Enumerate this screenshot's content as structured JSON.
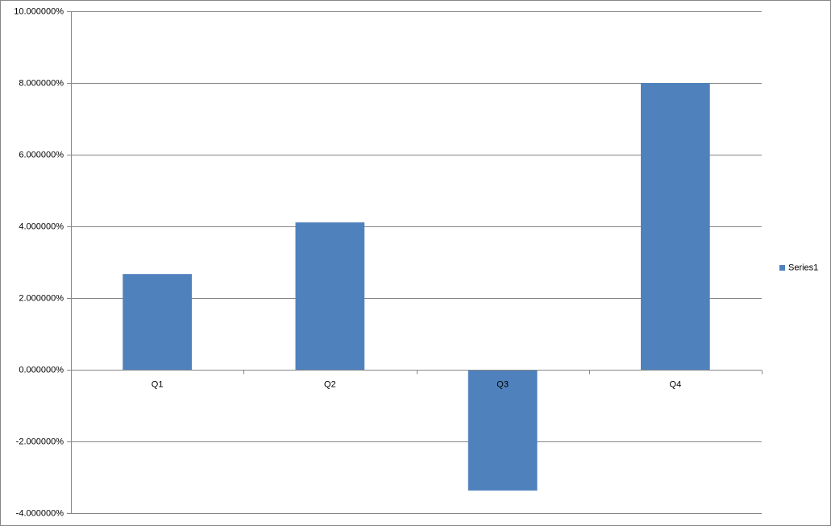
{
  "chart_data": {
    "type": "bar",
    "categories": [
      "Q1",
      "Q2",
      "Q3",
      "Q4"
    ],
    "series": [
      {
        "name": "Series1",
        "color": "#4f81bd",
        "values": [
          2.67,
          4.11,
          -3.37,
          8.0
        ]
      }
    ],
    "ylim": [
      -4,
      10
    ],
    "yticks": [
      {
        "value": -4,
        "label": "-4.000000%"
      },
      {
        "value": -2,
        "label": "-2.000000%"
      },
      {
        "value": 0,
        "label": "0.000000%"
      },
      {
        "value": 2,
        "label": "2.000000%"
      },
      {
        "value": 4,
        "label": "4.000000%"
      },
      {
        "value": 6,
        "label": "6.000000%"
      },
      {
        "value": 8,
        "label": "8.000000%"
      },
      {
        "value": 10,
        "label": "10.000000%"
      }
    ],
    "grid": true,
    "legend": "right"
  }
}
